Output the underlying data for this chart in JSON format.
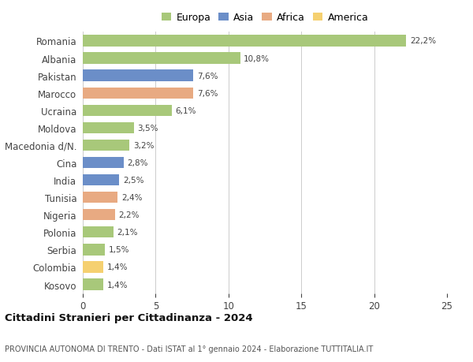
{
  "countries": [
    "Romania",
    "Albania",
    "Pakistan",
    "Marocco",
    "Ucraina",
    "Moldova",
    "Macedonia d/N.",
    "Cina",
    "India",
    "Tunisia",
    "Nigeria",
    "Polonia",
    "Serbia",
    "Colombia",
    "Kosovo"
  ],
  "values": [
    22.2,
    10.8,
    7.6,
    7.6,
    6.1,
    3.5,
    3.2,
    2.8,
    2.5,
    2.4,
    2.2,
    2.1,
    1.5,
    1.4,
    1.4
  ],
  "labels": [
    "22,2%",
    "10,8%",
    "7,6%",
    "7,6%",
    "6,1%",
    "3,5%",
    "3,2%",
    "2,8%",
    "2,5%",
    "2,4%",
    "2,2%",
    "2,1%",
    "1,5%",
    "1,4%",
    "1,4%"
  ],
  "continents": [
    "Europa",
    "Europa",
    "Asia",
    "Africa",
    "Europa",
    "Europa",
    "Europa",
    "Asia",
    "Asia",
    "Africa",
    "Africa",
    "Europa",
    "Europa",
    "America",
    "Europa"
  ],
  "colors": {
    "Europa": "#a8c87a",
    "Asia": "#6b8ec8",
    "Africa": "#e8aa82",
    "America": "#f5d070"
  },
  "legend_order": [
    "Europa",
    "Asia",
    "Africa",
    "America"
  ],
  "xlim": [
    0,
    25
  ],
  "xticks": [
    0,
    5,
    10,
    15,
    20,
    25
  ],
  "title": "Cittadini Stranieri per Cittadinanza - 2024",
  "subtitle": "PROVINCIA AUTONOMA DI TRENTO - Dati ISTAT al 1° gennaio 2024 - Elaborazione TUTTITALIA.IT",
  "background_color": "#ffffff",
  "grid_color": "#cccccc"
}
